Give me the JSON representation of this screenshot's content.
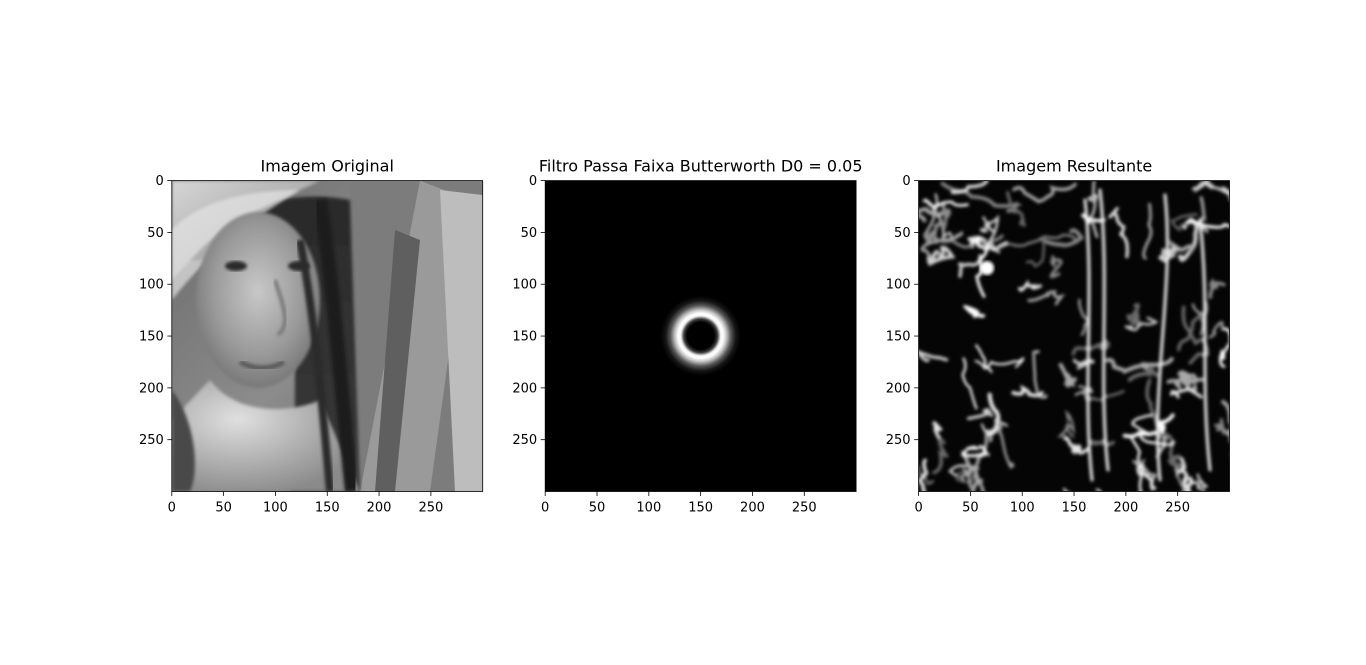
{
  "chart_data": [
    {
      "type": "image",
      "title": "Imagem Original",
      "xlim": [
        0,
        300
      ],
      "ylim": [
        0,
        300
      ],
      "y_inverted": true,
      "xticks": [
        0,
        50,
        100,
        150,
        200,
        250
      ],
      "yticks": [
        0,
        50,
        100,
        150,
        200,
        250
      ],
      "content": "grayscale photograph"
    },
    {
      "type": "image",
      "title": "Filtro Passa Faixa Butterworth D0 = 0.05",
      "xlim": [
        0,
        300
      ],
      "ylim": [
        0,
        300
      ],
      "y_inverted": true,
      "xticks": [
        0,
        50,
        100,
        150,
        200,
        250
      ],
      "yticks": [
        0,
        50,
        100,
        150,
        200,
        250
      ],
      "content": "black background with white ring centered at (150, 150)"
    },
    {
      "type": "image",
      "title": "Imagem Resultante",
      "xlim": [
        0,
        300
      ],
      "ylim": [
        0,
        300
      ],
      "y_inverted": true,
      "xticks": [
        0,
        50,
        100,
        150,
        200,
        250
      ],
      "yticks": [
        0,
        50,
        100,
        150,
        200,
        250
      ],
      "content": "band-pass filtered grayscale image with dark background and bright contour lines"
    }
  ]
}
